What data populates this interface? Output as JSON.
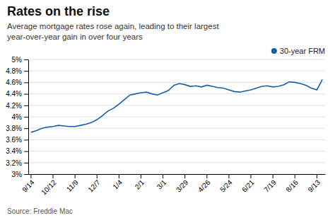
{
  "chart_data": {
    "type": "line",
    "title": "Rates on the rise",
    "subtitle": "Average mortgage rates rose again, leading to their largest\nyear-over-year gain in over four years",
    "source": "Source: Freddie Mac",
    "categories": [
      "9/14",
      null,
      null,
      null,
      "10/12",
      null,
      null,
      null,
      "11/9",
      null,
      null,
      null,
      "12/7",
      null,
      null,
      null,
      "1/4",
      null,
      null,
      null,
      "2/1",
      null,
      null,
      null,
      "3/1",
      null,
      null,
      null,
      "3/29",
      null,
      null,
      null,
      "4/26",
      null,
      null,
      null,
      "5/24",
      null,
      null,
      null,
      "6/21",
      null,
      null,
      null,
      "7/19",
      null,
      null,
      null,
      "8/16",
      null,
      null,
      null,
      "9/13",
      null
    ],
    "series": [
      {
        "name": "30-year FRM",
        "color": "#1a5ea8",
        "values": [
          3.73,
          3.76,
          3.8,
          3.82,
          3.83,
          3.85,
          3.84,
          3.83,
          3.83,
          3.85,
          3.87,
          3.9,
          3.95,
          4.02,
          4.1,
          4.15,
          4.22,
          4.3,
          4.38,
          4.4,
          4.42,
          4.43,
          4.4,
          4.38,
          4.42,
          4.46,
          4.55,
          4.58,
          4.56,
          4.53,
          4.54,
          4.52,
          4.55,
          4.53,
          4.51,
          4.5,
          4.47,
          4.44,
          4.43,
          4.45,
          4.47,
          4.5,
          4.53,
          4.54,
          4.52,
          4.53,
          4.56,
          4.61,
          4.6,
          4.58,
          4.55,
          4.5,
          4.47,
          4.65
        ]
      }
    ],
    "ylim": [
      3.0,
      5.0
    ],
    "yticks": [
      {
        "value": 3.0,
        "label": "3%"
      },
      {
        "value": 3.2,
        "label": "3.2%"
      },
      {
        "value": 3.4,
        "label": "3.4%"
      },
      {
        "value": 3.6,
        "label": "3.6%"
      },
      {
        "value": 3.8,
        "label": "3.8%"
      },
      {
        "value": 4.0,
        "label": "4%"
      },
      {
        "value": 4.2,
        "label": "4.2%"
      },
      {
        "value": 4.4,
        "label": "4.4%"
      },
      {
        "value": 4.6,
        "label": "4.6%"
      },
      {
        "value": 4.8,
        "label": "4.8%"
      },
      {
        "value": 5.0,
        "label": "5%"
      }
    ],
    "grid": true,
    "legend": "upper right"
  }
}
